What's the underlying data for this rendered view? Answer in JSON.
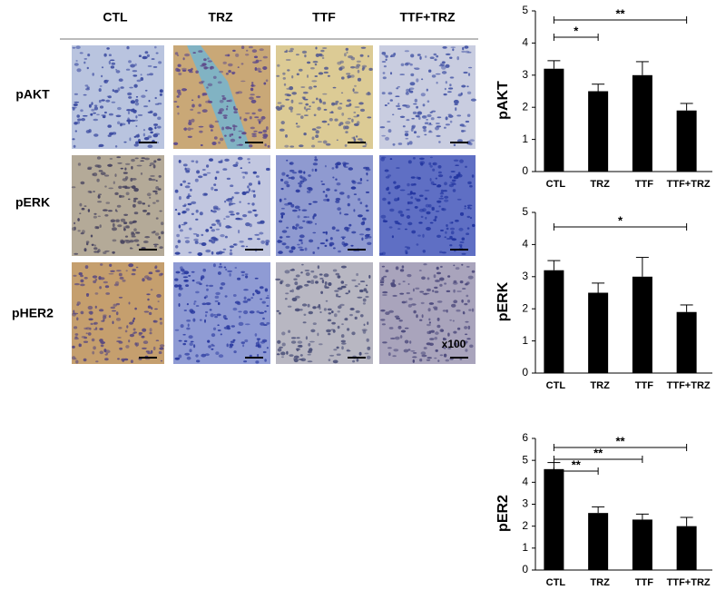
{
  "panel": {
    "columns": [
      "CTL",
      "TRZ",
      "TTF",
      "TTF+TRZ"
    ],
    "rows": [
      "pAKT",
      "pERK",
      "pHER2"
    ],
    "magnification": "x100"
  },
  "chart_data": [
    {
      "type": "bar",
      "ylabel": "pAKT",
      "categories": [
        "CTL",
        "TRZ",
        "TTF",
        "TTF+TRZ"
      ],
      "values": [
        3.2,
        2.5,
        3.0,
        1.9
      ],
      "errors": [
        0.25,
        0.22,
        0.42,
        0.22
      ],
      "color": "#000000",
      "ylim": [
        0,
        5
      ],
      "yticks": [
        0,
        1,
        2,
        3,
        4,
        5
      ],
      "annotations": [
        {
          "x": [
            0,
            1
          ],
          "label": "*"
        },
        {
          "x": [
            0,
            3
          ],
          "label": "**"
        }
      ]
    },
    {
      "type": "bar",
      "ylabel": "pERK",
      "categories": [
        "CTL",
        "TRZ",
        "TTF",
        "TTF+TRZ"
      ],
      "values": [
        3.2,
        2.5,
        3.0,
        1.9
      ],
      "errors": [
        0.3,
        0.3,
        0.6,
        0.22
      ],
      "color": "#000000",
      "ylim": [
        0,
        5
      ],
      "yticks": [
        0,
        1,
        2,
        3,
        4,
        5
      ],
      "annotations": [
        {
          "x": [
            0,
            3
          ],
          "label": "*"
        }
      ]
    },
    {
      "type": "bar",
      "ylabel": "pER2",
      "categories": [
        "CTL",
        "TRZ",
        "TTF",
        "TTF+TRZ"
      ],
      "values": [
        4.6,
        2.6,
        2.3,
        2.0
      ],
      "errors": [
        0.3,
        0.28,
        0.25,
        0.4
      ],
      "color": "#000000",
      "ylim": [
        0,
        6
      ],
      "yticks": [
        0,
        1,
        2,
        3,
        4,
        5,
        6
      ],
      "annotations": [
        {
          "x": [
            0,
            1
          ],
          "label": "**"
        },
        {
          "x": [
            0,
            2
          ],
          "label": "**"
        },
        {
          "x": [
            0,
            3
          ],
          "label": "**"
        }
      ]
    }
  ]
}
